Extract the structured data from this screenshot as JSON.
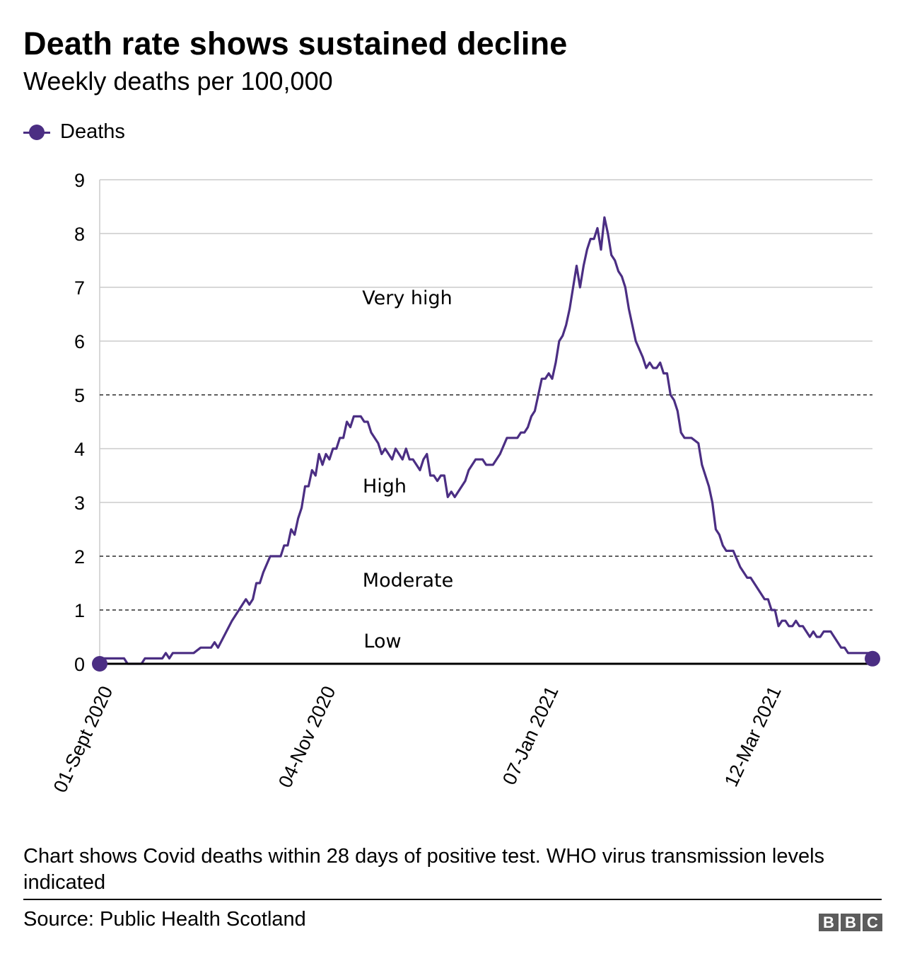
{
  "header": {
    "title": "Death rate shows sustained decline",
    "subtitle": "Weekly deaths per 100,000"
  },
  "legend": {
    "items": [
      {
        "label": "Deaths",
        "color": "#4b2e83",
        "icon": "line-with-dot"
      }
    ]
  },
  "footer": {
    "note": "Chart shows Covid deaths within 28 days of positive test. WHO virus transmission levels indicated",
    "source": "Source: Public Health Scotland",
    "logo": "BBC"
  },
  "chart_data": {
    "type": "line",
    "title": "Death rate shows sustained decline",
    "subtitle": "Weekly deaths per 100,000",
    "xlabel": "",
    "ylabel": "",
    "ylim": [
      0,
      9
    ],
    "yticks": [
      0,
      1,
      2,
      3,
      4,
      5,
      6,
      7,
      8,
      9
    ],
    "xlim": [
      "2020-09-01",
      "2021-04-11"
    ],
    "xticks": [
      {
        "date": "2020-09-01",
        "label": "01-Sept 2020"
      },
      {
        "date": "2020-11-04",
        "label": "04-Nov 2020"
      },
      {
        "date": "2021-01-07",
        "label": "07-Jan 2021"
      },
      {
        "date": "2021-03-12",
        "label": "12-Mar 2021"
      }
    ],
    "grid": true,
    "legend_position": "top-left",
    "threshold_lines": [
      1,
      2,
      5
    ],
    "zones": [
      {
        "label": "Low",
        "from": 0,
        "to": 1
      },
      {
        "label": "Moderate",
        "from": 1,
        "to": 2
      },
      {
        "label": "High",
        "from": 2,
        "to": 5
      },
      {
        "label": "Very high",
        "from": 5,
        "to": 9
      }
    ],
    "series": [
      {
        "name": "Deaths",
        "color": "#4b2e83",
        "endpoint_markers": true,
        "points": [
          [
            "2020-09-01",
            0.1
          ],
          [
            "2020-09-08",
            0.1
          ],
          [
            "2020-09-09",
            0.0
          ],
          [
            "2020-09-13",
            0.0
          ],
          [
            "2020-09-14",
            0.1
          ],
          [
            "2020-09-19",
            0.1
          ],
          [
            "2020-09-20",
            0.2
          ],
          [
            "2020-09-21",
            0.1
          ],
          [
            "2020-09-22",
            0.2
          ],
          [
            "2020-09-28",
            0.2
          ],
          [
            "2020-09-30",
            0.3
          ],
          [
            "2020-10-03",
            0.3
          ],
          [
            "2020-10-04",
            0.4
          ],
          [
            "2020-10-05",
            0.3
          ],
          [
            "2020-10-09",
            0.8
          ],
          [
            "2020-10-11",
            1.0
          ],
          [
            "2020-10-13",
            1.2
          ],
          [
            "2020-10-14",
            1.1
          ],
          [
            "2020-10-15",
            1.2
          ],
          [
            "2020-10-16",
            1.5
          ],
          [
            "2020-10-17",
            1.5
          ],
          [
            "2020-10-18",
            1.7
          ],
          [
            "2020-10-20",
            2.0
          ],
          [
            "2020-10-23",
            2.0
          ],
          [
            "2020-10-24",
            2.2
          ],
          [
            "2020-10-25",
            2.2
          ],
          [
            "2020-10-26",
            2.5
          ],
          [
            "2020-10-27",
            2.4
          ],
          [
            "2020-10-28",
            2.7
          ],
          [
            "2020-10-29",
            2.9
          ],
          [
            "2020-10-30",
            3.3
          ],
          [
            "2020-10-31",
            3.3
          ],
          [
            "2020-11-01",
            3.6
          ],
          [
            "2020-11-02",
            3.5
          ],
          [
            "2020-11-03",
            3.9
          ],
          [
            "2020-11-04",
            3.7
          ],
          [
            "2020-11-05",
            3.9
          ],
          [
            "2020-11-06",
            3.8
          ],
          [
            "2020-11-07",
            4.0
          ],
          [
            "2020-11-08",
            4.0
          ],
          [
            "2020-11-09",
            4.2
          ],
          [
            "2020-11-10",
            4.2
          ],
          [
            "2020-11-11",
            4.5
          ],
          [
            "2020-11-12",
            4.4
          ],
          [
            "2020-11-13",
            4.6
          ],
          [
            "2020-11-15",
            4.6
          ],
          [
            "2020-11-16",
            4.5
          ],
          [
            "2020-11-17",
            4.5
          ],
          [
            "2020-11-18",
            4.3
          ],
          [
            "2020-11-20",
            4.1
          ],
          [
            "2020-11-21",
            3.9
          ],
          [
            "2020-11-22",
            4.0
          ],
          [
            "2020-11-24",
            3.8
          ],
          [
            "2020-11-25",
            4.0
          ],
          [
            "2020-11-27",
            3.8
          ],
          [
            "2020-11-28",
            4.0
          ],
          [
            "2020-11-29",
            3.8
          ],
          [
            "2020-11-30",
            3.8
          ],
          [
            "2020-12-02",
            3.6
          ],
          [
            "2020-12-03",
            3.8
          ],
          [
            "2020-12-04",
            3.9
          ],
          [
            "2020-12-05",
            3.5
          ],
          [
            "2020-12-06",
            3.5
          ],
          [
            "2020-12-07",
            3.4
          ],
          [
            "2020-12-08",
            3.5
          ],
          [
            "2020-12-09",
            3.5
          ],
          [
            "2020-12-10",
            3.1
          ],
          [
            "2020-12-11",
            3.2
          ],
          [
            "2020-12-12",
            3.1
          ],
          [
            "2020-12-15",
            3.4
          ],
          [
            "2020-12-16",
            3.6
          ],
          [
            "2020-12-18",
            3.8
          ],
          [
            "2020-12-20",
            3.8
          ],
          [
            "2020-12-21",
            3.7
          ],
          [
            "2020-12-23",
            3.7
          ],
          [
            "2020-12-25",
            3.9
          ],
          [
            "2020-12-27",
            4.2
          ],
          [
            "2020-12-30",
            4.2
          ],
          [
            "2020-12-31",
            4.3
          ],
          [
            "2021-01-01",
            4.3
          ],
          [
            "2021-01-02",
            4.4
          ],
          [
            "2021-01-03",
            4.6
          ],
          [
            "2021-01-04",
            4.7
          ],
          [
            "2021-01-06",
            5.3
          ],
          [
            "2021-01-07",
            5.3
          ],
          [
            "2021-01-08",
            5.4
          ],
          [
            "2021-01-09",
            5.3
          ],
          [
            "2021-01-10",
            5.6
          ],
          [
            "2021-01-11",
            6.0
          ],
          [
            "2021-01-12",
            6.1
          ],
          [
            "2021-01-13",
            6.3
          ],
          [
            "2021-01-14",
            6.6
          ],
          [
            "2021-01-16",
            7.4
          ],
          [
            "2021-01-17",
            7.0
          ],
          [
            "2021-01-18",
            7.4
          ],
          [
            "2021-01-19",
            7.7
          ],
          [
            "2021-01-20",
            7.9
          ],
          [
            "2021-01-21",
            7.9
          ],
          [
            "2021-01-22",
            8.1
          ],
          [
            "2021-01-23",
            7.7
          ],
          [
            "2021-01-24",
            8.3
          ],
          [
            "2021-01-25",
            8.0
          ],
          [
            "2021-01-26",
            7.6
          ],
          [
            "2021-01-27",
            7.5
          ],
          [
            "2021-01-28",
            7.3
          ],
          [
            "2021-01-29",
            7.2
          ],
          [
            "2021-01-30",
            7.0
          ],
          [
            "2021-01-31",
            6.6
          ],
          [
            "2021-02-02",
            6.0
          ],
          [
            "2021-02-04",
            5.7
          ],
          [
            "2021-02-05",
            5.5
          ],
          [
            "2021-02-06",
            5.6
          ],
          [
            "2021-02-07",
            5.5
          ],
          [
            "2021-02-08",
            5.5
          ],
          [
            "2021-02-09",
            5.6
          ],
          [
            "2021-02-10",
            5.4
          ],
          [
            "2021-02-11",
            5.4
          ],
          [
            "2021-02-12",
            5.0
          ],
          [
            "2021-02-13",
            4.9
          ],
          [
            "2021-02-14",
            4.7
          ],
          [
            "2021-02-15",
            4.3
          ],
          [
            "2021-02-16",
            4.2
          ],
          [
            "2021-02-18",
            4.2
          ],
          [
            "2021-02-20",
            4.1
          ],
          [
            "2021-02-21",
            3.7
          ],
          [
            "2021-02-23",
            3.3
          ],
          [
            "2021-02-24",
            3.0
          ],
          [
            "2021-02-25",
            2.5
          ],
          [
            "2021-02-26",
            2.4
          ],
          [
            "2021-02-27",
            2.2
          ],
          [
            "2021-02-28",
            2.1
          ],
          [
            "2021-03-02",
            2.1
          ],
          [
            "2021-03-04",
            1.8
          ],
          [
            "2021-03-06",
            1.6
          ],
          [
            "2021-03-07",
            1.6
          ],
          [
            "2021-03-11",
            1.2
          ],
          [
            "2021-03-12",
            1.2
          ],
          [
            "2021-03-13",
            1.0
          ],
          [
            "2021-03-14",
            1.0
          ],
          [
            "2021-03-15",
            0.7
          ],
          [
            "2021-03-16",
            0.8
          ],
          [
            "2021-03-17",
            0.8
          ],
          [
            "2021-03-18",
            0.7
          ],
          [
            "2021-03-19",
            0.7
          ],
          [
            "2021-03-20",
            0.8
          ],
          [
            "2021-03-21",
            0.7
          ],
          [
            "2021-03-22",
            0.7
          ],
          [
            "2021-03-24",
            0.5
          ],
          [
            "2021-03-25",
            0.6
          ],
          [
            "2021-03-26",
            0.5
          ],
          [
            "2021-03-27",
            0.5
          ],
          [
            "2021-03-28",
            0.6
          ],
          [
            "2021-03-30",
            0.6
          ],
          [
            "2021-04-02",
            0.3
          ],
          [
            "2021-04-03",
            0.3
          ],
          [
            "2021-04-04",
            0.2
          ],
          [
            "2021-04-11",
            0.2
          ]
        ]
      }
    ]
  }
}
